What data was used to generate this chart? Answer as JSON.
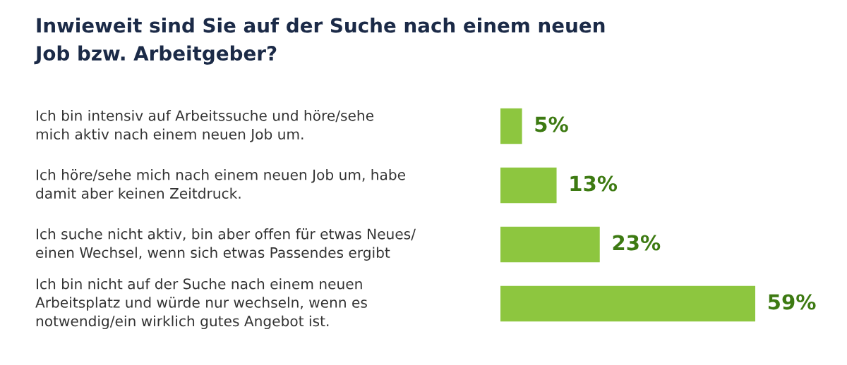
{
  "chart_data": {
    "type": "bar",
    "orientation": "horizontal",
    "title": "Inwieweit sind Sie auf der Suche nach einem neuen\nJob bzw. Arbeitgeber?",
    "categories": [
      "Ich bin intensiv auf Arbeitssuche und höre/sehe\nmich aktiv nach einem neuen Job um.",
      "Ich höre/sehe mich nach einem neuen Job um, habe\ndamit aber keinen Zeitdruck.",
      "Ich suche nicht aktiv, bin aber offen für etwas Neues/\neinen Wechsel, wenn sich etwas Passendes ergibt",
      "Ich bin nicht auf der Suche nach einem neuen\nArbeitsplatz und würde nur wechseln, wenn es\nnotwendig/ein wirklich gutes Angebot ist."
    ],
    "values": [
      5,
      13,
      23,
      59
    ],
    "value_labels": [
      "5%",
      "13%",
      "23%",
      "59%"
    ],
    "color": "#8dc63f"
  }
}
